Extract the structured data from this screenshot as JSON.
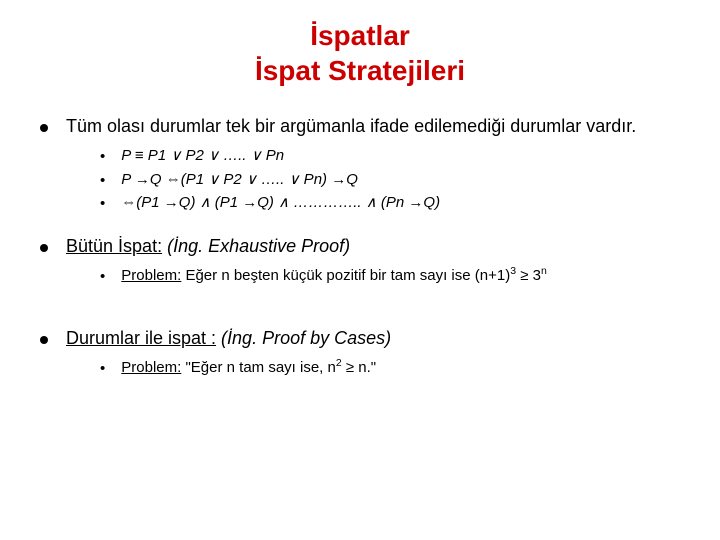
{
  "title": {
    "line1": "İspatlar",
    "line2": "İspat Stratejileri",
    "color": "#cc0000",
    "fontsize": 28
  },
  "body_fontsize": 18,
  "sub_fontsize": 15,
  "sec1": {
    "text": "Tüm olası durumlar tek bir argümanla ifade edilemediği durumlar vardır.",
    "sub1": "P ≡ P1 ∨ P2 ∨ ….. ∨  Pn",
    "sub2": "P →Q ⇔(P1 ∨ P2 ∨ ….. ∨  Pn) →Q",
    "sub3": "⇔(P1 →Q) ∧ (P1 →Q) ∧ ………….. ∧ (Pn →Q)"
  },
  "sec2": {
    "label": "Bütün İspat:",
    "paren": " (İng. Exhaustive Proof)",
    "sub_label": "Problem:",
    "sub_rest_a": " Eğer n beşten küçük pozitif bir tam sayı ise (n+1)",
    "sub_exp1": "3",
    "sub_mid": " ≥ 3",
    "sub_exp2": "n"
  },
  "sec3": {
    "label": "Durumlar ile ispat :",
    "paren": " (İng. Proof by Cases)",
    "sub_label": "Problem:",
    "sub_rest_a": " \"Eğer n tam sayı ise, n",
    "sub_exp1": "2",
    "sub_mid": " ≥ n.\""
  }
}
